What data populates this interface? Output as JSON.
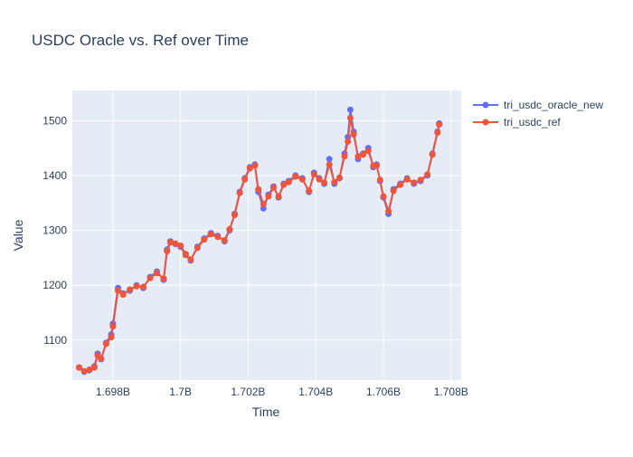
{
  "chart_data": {
    "type": "line",
    "title": "USDC Oracle vs. Ref over Time",
    "xlabel": "Time",
    "ylabel": "Value",
    "xlim": [
      1696800000,
      1708300000
    ],
    "ylim": [
      1027,
      1555
    ],
    "x_ticks": [
      1698000000,
      1700000000,
      1702000000,
      1704000000,
      1706000000,
      1708000000
    ],
    "x_tick_labels": [
      "1.698B",
      "1.7B",
      "1.702B",
      "1.704B",
      "1.706B",
      "1.708B"
    ],
    "y_ticks": [
      1100,
      1200,
      1300,
      1400,
      1500
    ],
    "y_tick_labels": [
      "1100",
      "1200",
      "1300",
      "1400",
      "1500"
    ],
    "grid": true,
    "legend_position": "top-right",
    "plot_background": "#E5ECF6",
    "series": [
      {
        "name": "tri_usdc_oracle_new",
        "color": "#636EFA",
        "mode": "lines+markers",
        "x": [
          1697000000,
          1697150000,
          1697300000,
          1697450000,
          1697550000,
          1697650000,
          1697800000,
          1697950000,
          1698000000,
          1698150000,
          1698300000,
          1698500000,
          1698700000,
          1698900000,
          1699100000,
          1699300000,
          1699500000,
          1699600000,
          1699700000,
          1699850000,
          1700000000,
          1700150000,
          1700300000,
          1700500000,
          1700700000,
          1700900000,
          1701100000,
          1701300000,
          1701450000,
          1701600000,
          1701750000,
          1701900000,
          1702050000,
          1702200000,
          1702300000,
          1702450000,
          1702600000,
          1702750000,
          1702900000,
          1703050000,
          1703200000,
          1703400000,
          1703600000,
          1703800000,
          1703950000,
          1704100000,
          1704250000,
          1704400000,
          1704550000,
          1704700000,
          1704850000,
          1704950000,
          1705020000,
          1705120000,
          1705250000,
          1705400000,
          1705550000,
          1705700000,
          1705800000,
          1705900000,
          1706000000,
          1706150000,
          1706300000,
          1706500000,
          1706700000,
          1706900000,
          1707100000,
          1707300000,
          1707450000,
          1707600000,
          1707650000
        ],
        "y": [
          1050,
          1042,
          1045,
          1052,
          1075,
          1065,
          1095,
          1110,
          1130,
          1195,
          1185,
          1190,
          1200,
          1195,
          1215,
          1225,
          1210,
          1265,
          1280,
          1275,
          1270,
          1255,
          1245,
          1270,
          1285,
          1295,
          1290,
          1280,
          1300,
          1330,
          1370,
          1395,
          1415,
          1420,
          1370,
          1340,
          1365,
          1380,
          1360,
          1385,
          1390,
          1400,
          1395,
          1370,
          1405,
          1395,
          1385,
          1430,
          1385,
          1395,
          1440,
          1470,
          1520,
          1480,
          1430,
          1440,
          1450,
          1415,
          1420,
          1390,
          1360,
          1330,
          1375,
          1385,
          1395,
          1385,
          1390,
          1400,
          1440,
          1480,
          1495
        ]
      },
      {
        "name": "tri_usdc_ref",
        "color": "#EF553B",
        "mode": "lines+markers",
        "x": [
          1697000000,
          1697150000,
          1697300000,
          1697450000,
          1697550000,
          1697650000,
          1697800000,
          1697950000,
          1698000000,
          1698150000,
          1698300000,
          1698500000,
          1698700000,
          1698900000,
          1699100000,
          1699300000,
          1699500000,
          1699600000,
          1699700000,
          1699850000,
          1700000000,
          1700150000,
          1700300000,
          1700500000,
          1700700000,
          1700900000,
          1701100000,
          1701300000,
          1701450000,
          1701600000,
          1701750000,
          1701900000,
          1702050000,
          1702200000,
          1702300000,
          1702450000,
          1702600000,
          1702750000,
          1702900000,
          1703050000,
          1703200000,
          1703400000,
          1703600000,
          1703800000,
          1703950000,
          1704100000,
          1704250000,
          1704400000,
          1704550000,
          1704700000,
          1704850000,
          1704950000,
          1705020000,
          1705120000,
          1705250000,
          1705400000,
          1705550000,
          1705700000,
          1705800000,
          1705900000,
          1706000000,
          1706150000,
          1706300000,
          1706500000,
          1706700000,
          1706900000,
          1707100000,
          1707300000,
          1707450000,
          1707600000,
          1707650000
        ],
        "y": [
          1050,
          1043,
          1046,
          1050,
          1072,
          1066,
          1093,
          1105,
          1125,
          1190,
          1183,
          1192,
          1198,
          1197,
          1213,
          1222,
          1212,
          1262,
          1278,
          1276,
          1272,
          1257,
          1247,
          1268,
          1283,
          1293,
          1288,
          1282,
          1302,
          1328,
          1368,
          1393,
          1413,
          1418,
          1375,
          1348,
          1362,
          1378,
          1362,
          1383,
          1388,
          1398,
          1393,
          1372,
          1402,
          1393,
          1387,
          1420,
          1388,
          1396,
          1435,
          1462,
          1505,
          1475,
          1435,
          1438,
          1445,
          1418,
          1418,
          1392,
          1362,
          1335,
          1372,
          1383,
          1393,
          1387,
          1392,
          1402,
          1438,
          1478,
          1493
        ]
      }
    ]
  }
}
